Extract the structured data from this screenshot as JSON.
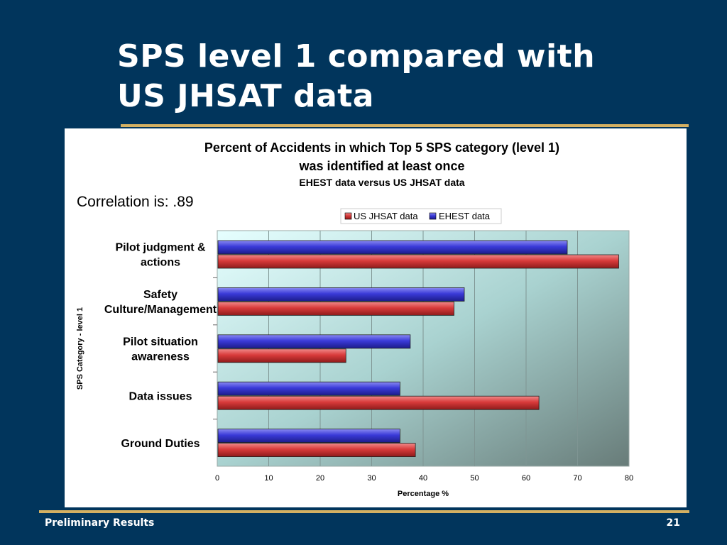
{
  "slide": {
    "title_line1": "SPS level 1 compared with",
    "title_line2": "US JHSAT data",
    "footer_left": "Preliminary Results",
    "page_number": "21",
    "background_color": "#01355c",
    "rule_color": "#d4b062"
  },
  "chart_data": {
    "type": "bar",
    "orientation": "horizontal",
    "title_line1": "Percent of Accidents in which Top 5 SPS category (level 1)",
    "title_line2": "was identified at least once",
    "subtitle": "EHEST data versus US JHSAT data",
    "annotation": "Correlation is: .89",
    "xlabel": "Percentage %",
    "ylabel": "SPS Category - level 1",
    "xlim": [
      0,
      80
    ],
    "xticks": [
      "0",
      "10",
      "20",
      "30",
      "40",
      "50",
      "60",
      "70",
      "80"
    ],
    "legend_position": "top",
    "grid": true,
    "categories": [
      [
        "Pilot judgment &",
        "actions"
      ],
      [
        "Safety",
        "Culture/Management"
      ],
      [
        "Pilot situation",
        "awareness"
      ],
      [
        "Data issues"
      ],
      [
        "Ground Duties"
      ]
    ],
    "series": [
      {
        "name": "US JHSAT data",
        "color": "#d83a3a",
        "values": [
          78,
          46,
          25,
          62.5,
          38.5
        ]
      },
      {
        "name": "EHEST data",
        "color": "#3a3ad8",
        "values": [
          68,
          48,
          37.5,
          35.5,
          35.5
        ]
      }
    ]
  }
}
